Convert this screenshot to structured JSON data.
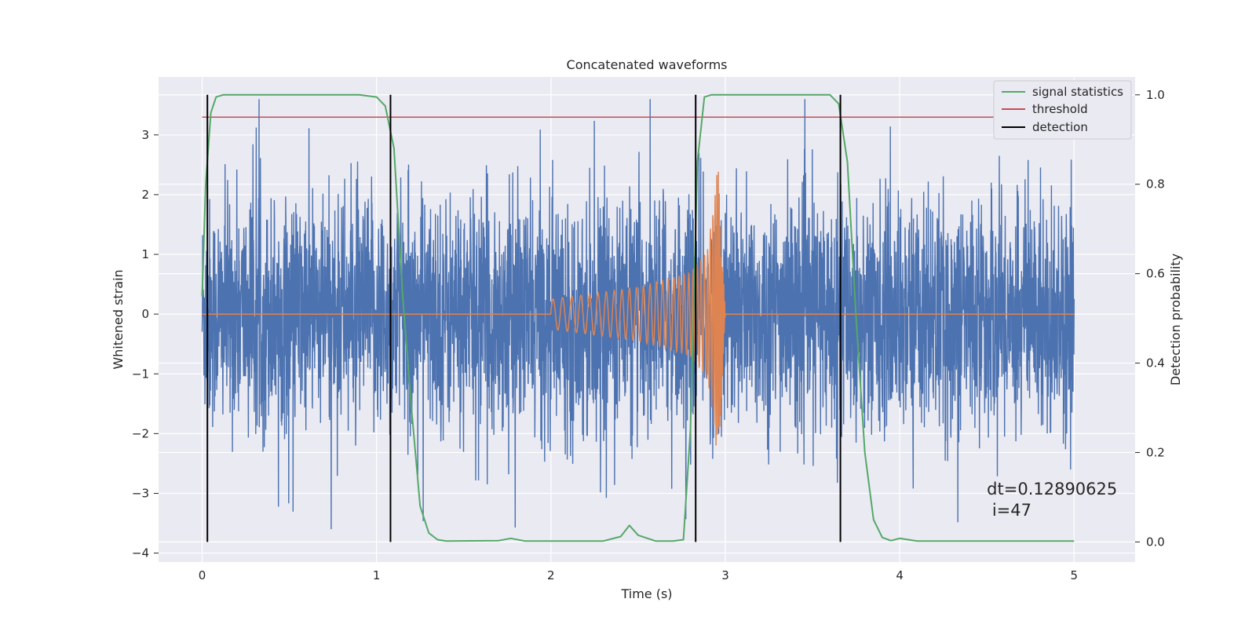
{
  "chart_data": {
    "type": "line",
    "title": "Concatenated waveforms",
    "xlabel": "Time (s)",
    "ylabel": "Whitened strain",
    "y2label": "Detection probability",
    "xlim": [
      -0.25,
      5.35
    ],
    "ylim": [
      -4.15,
      3.97
    ],
    "y2lim": [
      -0.045,
      1.04
    ],
    "xticks": [
      0,
      1,
      2,
      3,
      4,
      5
    ],
    "yticks": [
      -4,
      -3,
      -2,
      -1,
      0,
      1,
      2,
      3
    ],
    "y2ticks": [
      0.0,
      0.2,
      0.4,
      0.6,
      0.8,
      1.0
    ],
    "xtick_labels": [
      "0",
      "1",
      "2",
      "3",
      "4",
      "5"
    ],
    "ytick_labels": [
      "−4",
      "−3",
      "−2",
      "−1",
      "0",
      "1",
      "2",
      "3"
    ],
    "y2tick_labels": [
      "0.0",
      "0.2",
      "0.4",
      "0.6",
      "0.8",
      "1.0"
    ],
    "grid": true,
    "legend_position": "top-right",
    "series": [
      {
        "color": "#4c72b0",
        "axis": "left",
        "kind": "noise",
        "x_range": [
          0,
          5
        ],
        "peak_abs_approx": 3.6
      },
      {
        "color": "#dd8452",
        "axis": "left",
        "kind": "chirp",
        "x": [
          0,
          2.0,
          2.5,
          2.8,
          2.9,
          2.94,
          2.96,
          3.0,
          5.0
        ],
        "envelope": [
          0,
          0.25,
          0.45,
          0.7,
          1.1,
          2.0,
          2.6,
          0,
          0
        ]
      },
      {
        "name": "signal statistics",
        "color": "#55a868",
        "axis": "right",
        "x": [
          0,
          0.02,
          0.05,
          0.08,
          0.12,
          0.2,
          0.9,
          1.0,
          1.05,
          1.1,
          1.15,
          1.2,
          1.25,
          1.3,
          1.35,
          1.4,
          1.7,
          1.77,
          1.85,
          2.3,
          2.4,
          2.45,
          2.5,
          2.6,
          2.7,
          2.76,
          2.8,
          2.84,
          2.88,
          2.92,
          2.98,
          3.6,
          3.65,
          3.7,
          3.75,
          3.8,
          3.85,
          3.9,
          3.95,
          4.0,
          4.1,
          5.0
        ],
        "y": [
          0.55,
          0.8,
          0.96,
          0.995,
          1.0,
          1.0,
          1.0,
          0.995,
          0.975,
          0.88,
          0.55,
          0.3,
          0.08,
          0.02,
          0.005,
          0.002,
          0.003,
          0.008,
          0.002,
          0.002,
          0.012,
          0.037,
          0.015,
          0.002,
          0.002,
          0.005,
          0.25,
          0.85,
          0.995,
          1.0,
          1.0,
          1.0,
          0.98,
          0.85,
          0.5,
          0.2,
          0.05,
          0.01,
          0.003,
          0.008,
          0.002,
          0.002
        ]
      },
      {
        "name": "threshold",
        "color": "#c44e52",
        "axis": "right",
        "x": [
          0,
          5.1
        ],
        "y": [
          0.95,
          0.95
        ]
      },
      {
        "name": "detection",
        "color": "#000000",
        "axis": "right",
        "kind": "vlines",
        "x": [
          0.03,
          1.08,
          2.83,
          3.66
        ],
        "y_range": [
          0,
          1
        ]
      }
    ],
    "annotation": {
      "line1": "dt=0.12890625",
      "line2": " i=47",
      "x": 4.5,
      "y": -3.15
    }
  }
}
